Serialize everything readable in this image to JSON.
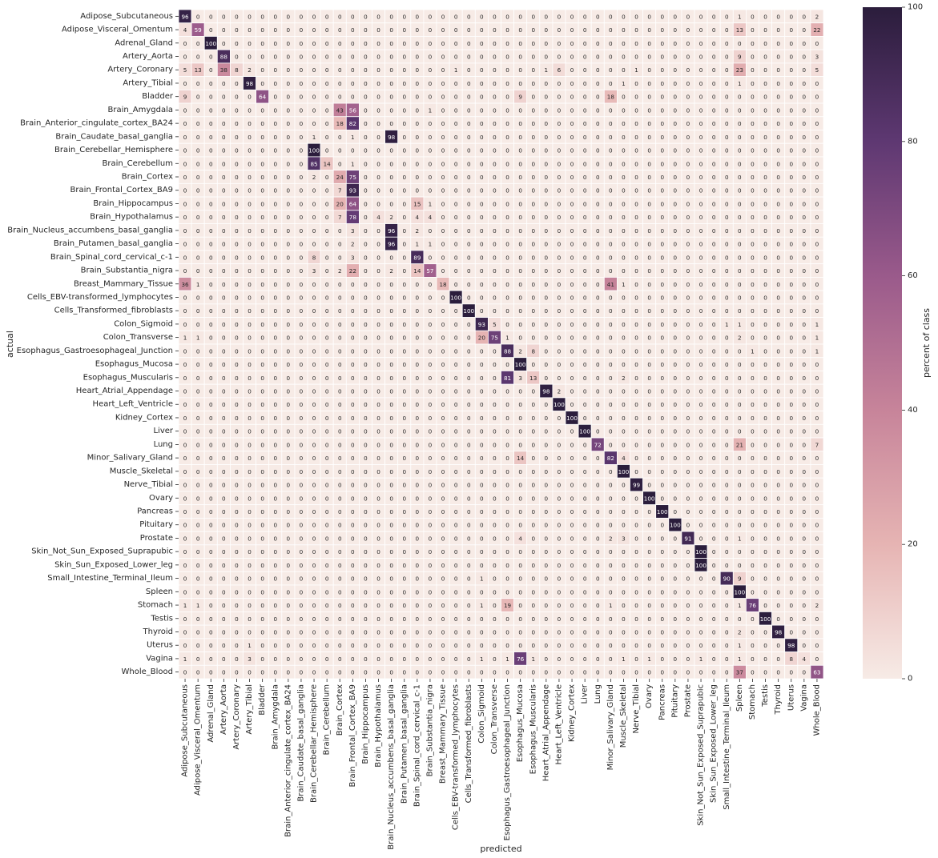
{
  "chart_data": {
    "type": "heatmap",
    "xlabel": "predicted",
    "ylabel": "actual",
    "colorbar_label": "percent of class",
    "colorbar_ticks": [
      0,
      20,
      40,
      60,
      80,
      100
    ],
    "value_range": [
      0,
      100
    ],
    "colormap": [
      "#f7ebe6",
      "#e6b4b3",
      "#c7849a",
      "#9a5a8b",
      "#5e3872",
      "#2b1d3c"
    ],
    "classes": [
      "Adipose_Subcutaneous",
      "Adipose_Visceral_Omentum",
      "Adrenal_Gland",
      "Artery_Aorta",
      "Artery_Coronary",
      "Artery_Tibial",
      "Bladder",
      "Brain_Amygdala",
      "Brain_Anterior_cingulate_cortex_BA24",
      "Brain_Caudate_basal_ganglia",
      "Brain_Cerebellar_Hemisphere",
      "Brain_Cerebellum",
      "Brain_Cortex",
      "Brain_Frontal_Cortex_BA9",
      "Brain_Hippocampus",
      "Brain_Hypothalamus",
      "Brain_Nucleus_accumbens_basal_ganglia",
      "Brain_Putamen_basal_ganglia",
      "Brain_Spinal_cord_cervical_c-1",
      "Brain_Substantia_nigra",
      "Breast_Mammary_Tissue",
      "Cells_EBV-transformed_lymphocytes",
      "Cells_Transformed_fibroblasts",
      "Colon_Sigmoid",
      "Colon_Transverse",
      "Esophagus_Gastroesophageal_Junction",
      "Esophagus_Mucosa",
      "Esophagus_Muscularis",
      "Heart_Atrial_Appendage",
      "Heart_Left_Ventricle",
      "Kidney_Cortex",
      "Liver",
      "Lung",
      "Minor_Salivary_Gland",
      "Muscle_Skeletal",
      "Nerve_Tibial",
      "Ovary",
      "Pancreas",
      "Pituitary",
      "Prostate",
      "Skin_Not_Sun_Exposed_Suprapubic",
      "Skin_Sun_Exposed_Lower_leg",
      "Small_Intestine_Terminal_Ileum",
      "Spleen",
      "Stomach",
      "Testis",
      "Thyroid",
      "Uterus",
      "Vagina",
      "Whole_Blood"
    ],
    "nonzero_cells": [
      [
        0,
        0,
        96
      ],
      [
        0,
        43,
        1
      ],
      [
        0,
        49,
        2
      ],
      [
        1,
        0,
        4
      ],
      [
        1,
        1,
        59
      ],
      [
        1,
        43,
        13
      ],
      [
        1,
        49,
        22
      ],
      [
        2,
        2,
        100
      ],
      [
        3,
        3,
        88
      ],
      [
        3,
        43,
        9
      ],
      [
        3,
        49,
        3
      ],
      [
        4,
        0,
        5
      ],
      [
        4,
        1,
        13
      ],
      [
        4,
        3,
        38
      ],
      [
        4,
        4,
        8
      ],
      [
        4,
        5,
        2
      ],
      [
        4,
        21,
        1
      ],
      [
        4,
        28,
        1
      ],
      [
        4,
        29,
        6
      ],
      [
        4,
        35,
        1
      ],
      [
        4,
        43,
        23
      ],
      [
        4,
        49,
        5
      ],
      [
        5,
        5,
        98
      ],
      [
        5,
        34,
        1
      ],
      [
        5,
        43,
        1
      ],
      [
        6,
        0,
        9
      ],
      [
        6,
        6,
        64
      ],
      [
        6,
        26,
        9
      ],
      [
        6,
        33,
        18
      ],
      [
        7,
        12,
        43
      ],
      [
        7,
        13,
        56
      ],
      [
        7,
        19,
        1
      ],
      [
        8,
        12,
        18
      ],
      [
        8,
        13,
        82
      ],
      [
        9,
        10,
        1
      ],
      [
        9,
        13,
        1
      ],
      [
        9,
        16,
        98
      ],
      [
        10,
        10,
        100
      ],
      [
        11,
        10,
        85
      ],
      [
        11,
        11,
        14
      ],
      [
        11,
        13,
        1
      ],
      [
        12,
        10,
        2
      ],
      [
        12,
        12,
        24
      ],
      [
        12,
        13,
        75
      ],
      [
        13,
        12,
        7
      ],
      [
        13,
        13,
        93
      ],
      [
        14,
        12,
        20
      ],
      [
        14,
        13,
        64
      ],
      [
        14,
        18,
        15
      ],
      [
        14,
        19,
        1
      ],
      [
        15,
        12,
        7
      ],
      [
        15,
        13,
        78
      ],
      [
        15,
        15,
        4
      ],
      [
        15,
        16,
        2
      ],
      [
        15,
        18,
        4
      ],
      [
        15,
        19,
        4
      ],
      [
        16,
        13,
        3
      ],
      [
        16,
        16,
        96
      ],
      [
        16,
        18,
        2
      ],
      [
        17,
        13,
        2
      ],
      [
        17,
        16,
        96
      ],
      [
        17,
        18,
        1
      ],
      [
        17,
        19,
        1
      ],
      [
        18,
        10,
        8
      ],
      [
        18,
        13,
        3
      ],
      [
        18,
        18,
        89
      ],
      [
        19,
        10,
        3
      ],
      [
        19,
        12,
        2
      ],
      [
        19,
        13,
        22
      ],
      [
        19,
        16,
        2
      ],
      [
        19,
        18,
        14
      ],
      [
        19,
        19,
        57
      ],
      [
        20,
        0,
        36
      ],
      [
        20,
        1,
        1
      ],
      [
        20,
        20,
        18
      ],
      [
        20,
        33,
        41
      ],
      [
        20,
        34,
        1
      ],
      [
        21,
        21,
        100
      ],
      [
        22,
        22,
        100
      ],
      [
        23,
        23,
        93
      ],
      [
        23,
        24,
        5
      ],
      [
        23,
        42,
        1
      ],
      [
        23,
        43,
        1
      ],
      [
        23,
        49,
        1
      ],
      [
        24,
        0,
        1
      ],
      [
        24,
        1,
        1
      ],
      [
        24,
        23,
        20
      ],
      [
        24,
        24,
        75
      ],
      [
        24,
        25,
        1
      ],
      [
        24,
        43,
        2
      ],
      [
        24,
        49,
        1
      ],
      [
        25,
        25,
        88
      ],
      [
        25,
        26,
        2
      ],
      [
        25,
        27,
        8
      ],
      [
        25,
        44,
        1
      ],
      [
        25,
        49,
        1
      ],
      [
        26,
        26,
        100
      ],
      [
        27,
        25,
        81
      ],
      [
        27,
        26,
        3
      ],
      [
        27,
        27,
        13
      ],
      [
        27,
        34,
        2
      ],
      [
        28,
        28,
        98
      ],
      [
        28,
        29,
        2
      ],
      [
        29,
        29,
        100
      ],
      [
        30,
        30,
        100
      ],
      [
        31,
        31,
        100
      ],
      [
        32,
        32,
        72
      ],
      [
        32,
        43,
        21
      ],
      [
        32,
        49,
        7
      ],
      [
        33,
        26,
        14
      ],
      [
        33,
        33,
        82
      ],
      [
        33,
        34,
        4
      ],
      [
        34,
        34,
        100
      ],
      [
        35,
        35,
        99
      ],
      [
        36,
        36,
        100
      ],
      [
        37,
        37,
        100
      ],
      [
        38,
        38,
        100
      ],
      [
        39,
        26,
        4
      ],
      [
        39,
        33,
        2
      ],
      [
        39,
        34,
        3
      ],
      [
        39,
        39,
        91
      ],
      [
        39,
        43,
        1
      ],
      [
        40,
        40,
        100
      ],
      [
        41,
        40,
        100
      ],
      [
        42,
        23,
        1
      ],
      [
        42,
        42,
        90
      ],
      [
        42,
        43,
        9
      ],
      [
        43,
        43,
        100
      ],
      [
        44,
        0,
        1
      ],
      [
        44,
        1,
        1
      ],
      [
        44,
        23,
        1
      ],
      [
        44,
        25,
        19
      ],
      [
        44,
        33,
        1
      ],
      [
        44,
        43,
        1
      ],
      [
        44,
        44,
        76
      ],
      [
        44,
        49,
        2
      ],
      [
        45,
        45,
        100
      ],
      [
        46,
        43,
        2
      ],
      [
        46,
        46,
        98
      ],
      [
        47,
        5,
        1
      ],
      [
        47,
        43,
        1
      ],
      [
        47,
        47,
        98
      ],
      [
        48,
        0,
        1
      ],
      [
        48,
        5,
        3
      ],
      [
        48,
        23,
        1
      ],
      [
        48,
        25,
        1
      ],
      [
        48,
        26,
        76
      ],
      [
        48,
        27,
        1
      ],
      [
        48,
        34,
        1
      ],
      [
        48,
        36,
        1
      ],
      [
        48,
        40,
        1
      ],
      [
        48,
        43,
        1
      ],
      [
        48,
        47,
        8
      ],
      [
        48,
        48,
        4
      ],
      [
        49,
        43,
        37
      ],
      [
        49,
        49,
        63
      ]
    ]
  }
}
